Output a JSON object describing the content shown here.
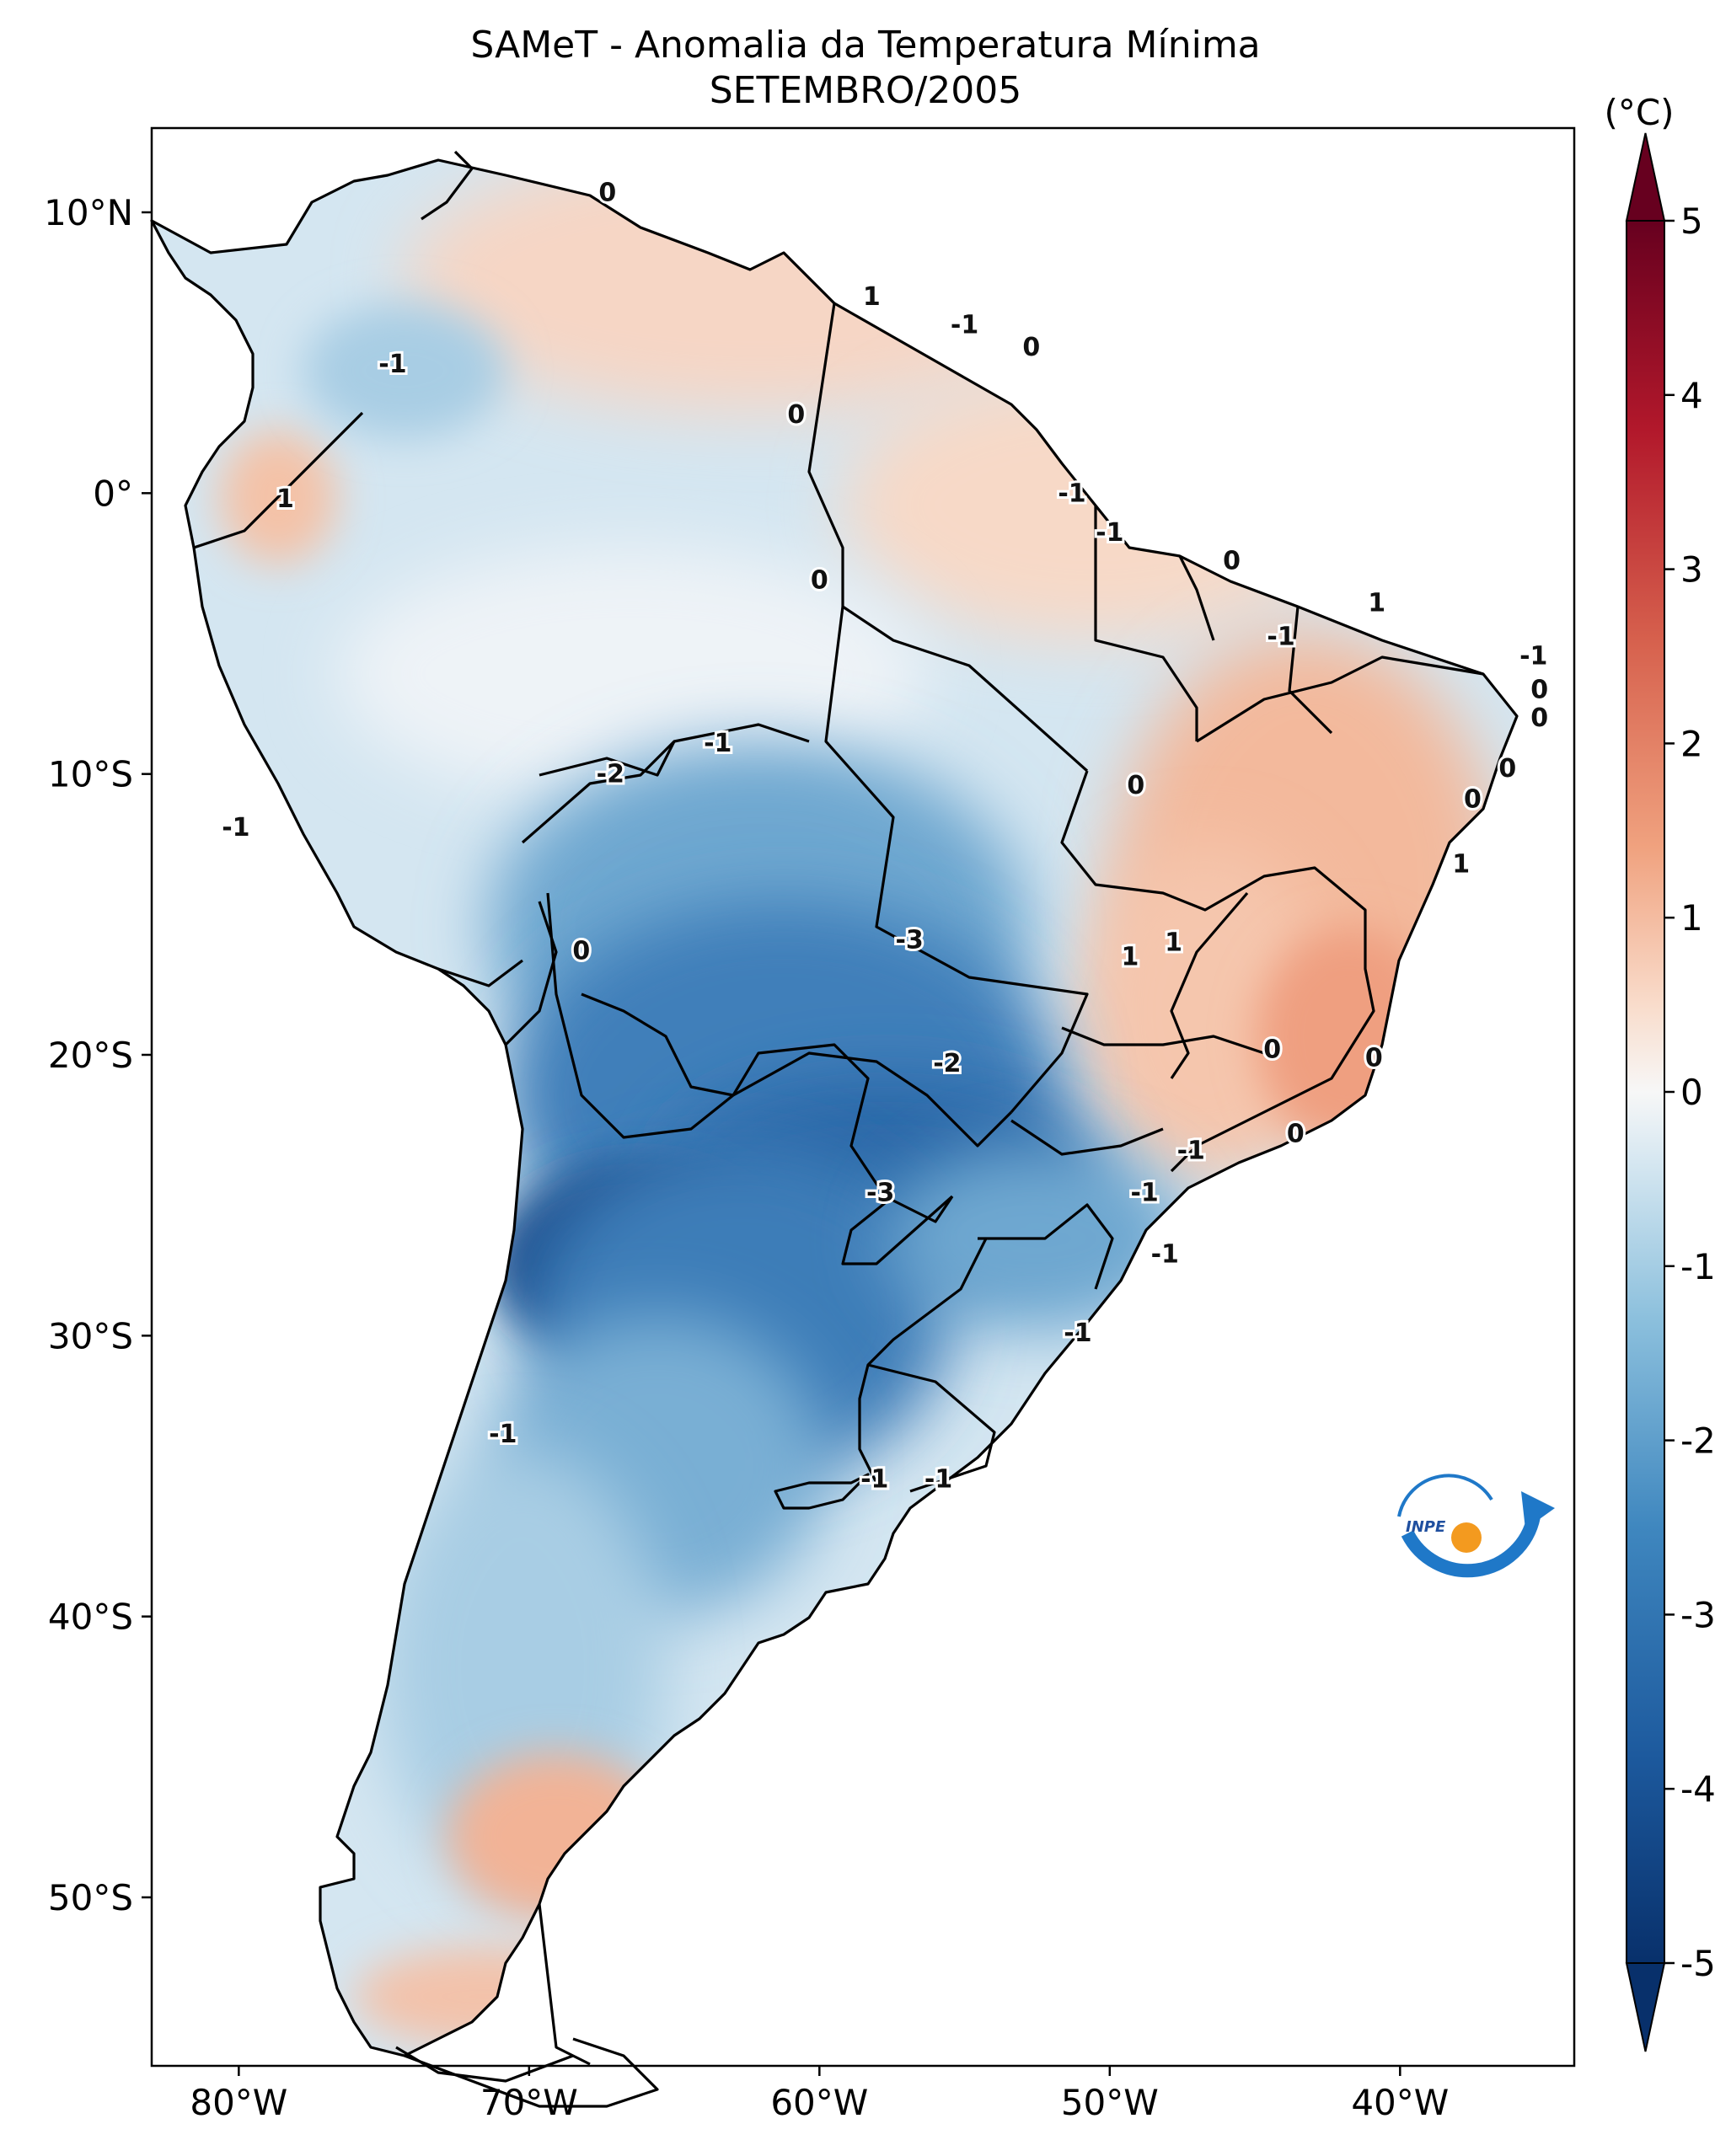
{
  "title": "SAMeT - Anomalia da Temperatura Mínima",
  "subtitle": "SETEMBRO/2005",
  "logo_text": "INPE",
  "map": {
    "lon_range": [
      -83,
      -34
    ],
    "lat_range": [
      -56,
      13
    ],
    "x_ticks": [
      {
        "lon": -80,
        "label": "80°W"
      },
      {
        "lon": -70,
        "label": "70°W"
      },
      {
        "lon": -60,
        "label": "60°W"
      },
      {
        "lon": -50,
        "label": "50°W"
      },
      {
        "lon": -40,
        "label": "40°W"
      }
    ],
    "y_ticks": [
      {
        "lat": 10,
        "label": "10°N"
      },
      {
        "lat": 0,
        "label": "0°"
      },
      {
        "lat": -10,
        "label": "10°S"
      },
      {
        "lat": -20,
        "label": "20°S"
      },
      {
        "lat": -30,
        "label": "30°S"
      },
      {
        "lat": -40,
        "label": "40°S"
      },
      {
        "lat": -50,
        "label": "50°S"
      }
    ]
  },
  "colorbar": {
    "unit": "(°C)",
    "range": [
      -5,
      5
    ],
    "tick_labels": [
      "5",
      "4",
      "3",
      "2",
      "1",
      "0",
      "-1",
      "-2",
      "-3",
      "-4",
      "-5"
    ],
    "colors": {
      "min": "#08306b",
      "low": "#2166ac",
      "mid_low": "#92c5de",
      "zero": "#f7f7f7",
      "mid_high": "#f4a582",
      "high": "#b2182b",
      "max": "#67001f"
    }
  },
  "contour_labels": [
    {
      "text": "0",
      "lon": -67.3,
      "lat": 10.7
    },
    {
      "text": "1",
      "lon": -58.2,
      "lat": 7.0
    },
    {
      "text": "-1",
      "lon": -55.0,
      "lat": 6.0
    },
    {
      "text": "0",
      "lon": -52.7,
      "lat": 5.2
    },
    {
      "text": "-1",
      "lon": -74.7,
      "lat": 4.6
    },
    {
      "text": "0",
      "lon": -60.8,
      "lat": 2.8
    },
    {
      "text": "1",
      "lon": -78.4,
      "lat": -0.2
    },
    {
      "text": "-1",
      "lon": -51.3,
      "lat": 0.0
    },
    {
      "text": "-1",
      "lon": -50.0,
      "lat": -1.4
    },
    {
      "text": "0",
      "lon": -60.0,
      "lat": -3.1
    },
    {
      "text": "0",
      "lon": -45.8,
      "lat": -2.4
    },
    {
      "text": "1",
      "lon": -40.8,
      "lat": -3.9
    },
    {
      "text": "-1",
      "lon": -44.1,
      "lat": -5.1
    },
    {
      "text": "-1",
      "lon": -35.4,
      "lat": -5.8
    },
    {
      "text": "0",
      "lon": -35.2,
      "lat": -7.0
    },
    {
      "text": "0",
      "lon": -35.2,
      "lat": -8.0
    },
    {
      "text": "-2",
      "lon": -67.2,
      "lat": -10.0
    },
    {
      "text": "-1",
      "lon": -63.5,
      "lat": -8.9
    },
    {
      "text": "-1",
      "lon": -80.1,
      "lat": -11.9
    },
    {
      "text": "0",
      "lon": -49.1,
      "lat": -10.4
    },
    {
      "text": "0",
      "lon": -36.3,
      "lat": -9.8
    },
    {
      "text": "0",
      "lon": -37.5,
      "lat": -10.9
    },
    {
      "text": "1",
      "lon": -37.9,
      "lat": -13.2
    },
    {
      "text": "-3",
      "lon": -56.9,
      "lat": -15.9
    },
    {
      "text": "1",
      "lon": -47.8,
      "lat": -16.0
    },
    {
      "text": "1",
      "lon": -49.3,
      "lat": -16.5
    },
    {
      "text": "0",
      "lon": -68.2,
      "lat": -16.3
    },
    {
      "text": "-2",
      "lon": -55.6,
      "lat": -20.3
    },
    {
      "text": "0",
      "lon": -44.4,
      "lat": -19.8
    },
    {
      "text": "0",
      "lon": -40.9,
      "lat": -20.1
    },
    {
      "text": "0",
      "lon": -43.6,
      "lat": -22.8
    },
    {
      "text": "-1",
      "lon": -47.2,
      "lat": -23.4
    },
    {
      "text": "-3",
      "lon": -57.9,
      "lat": -24.9
    },
    {
      "text": "-1",
      "lon": -48.8,
      "lat": -24.9
    },
    {
      "text": "-1",
      "lon": -48.1,
      "lat": -27.1
    },
    {
      "text": "-1",
      "lon": -51.1,
      "lat": -29.9
    },
    {
      "text": "-1",
      "lon": -70.9,
      "lat": -33.5
    },
    {
      "text": "-1",
      "lon": -58.1,
      "lat": -35.1
    },
    {
      "text": "-1",
      "lon": -55.9,
      "lat": -35.1
    }
  ]
}
